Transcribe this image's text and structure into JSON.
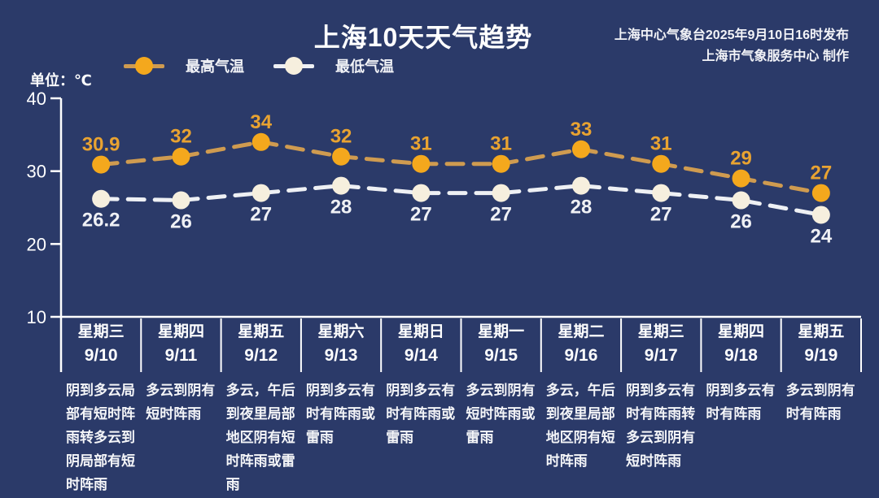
{
  "header": {
    "title": "上海10天天气趋势",
    "publisher_line1": "上海中心气象台2025年9月10日16时发布",
    "publisher_line2": "上海市气象服务中心 制作"
  },
  "legend": {
    "high_label": "最高气温",
    "low_label": "最低气温"
  },
  "unit_label": "单位：℃",
  "colors": {
    "background": "#2b3a69",
    "axis": "#ffffff",
    "high_line": "#cf9b50",
    "high_marker": "#f4a81d",
    "high_value_label": "#e9a331",
    "low_line": "#eef0f4",
    "low_marker": "#f6efde",
    "low_value_label": "#f0f1f5"
  },
  "chart_data": {
    "type": "line",
    "title": "上海10天天气趋势",
    "unit": "℃",
    "ylim": [
      10,
      40
    ],
    "yticks": [
      40,
      30,
      20,
      10
    ],
    "grid": false,
    "legend_position": "top-left",
    "categories": [
      "9/10",
      "9/11",
      "9/12",
      "9/13",
      "9/14",
      "9/15",
      "9/16",
      "9/17",
      "9/18",
      "9/19"
    ],
    "series": [
      {
        "name": "最高气温",
        "values": [
          30.9,
          32,
          34,
          32,
          31,
          31,
          33,
          31,
          29,
          27
        ]
      },
      {
        "name": "最低气温",
        "values": [
          26.2,
          26,
          27,
          28,
          27,
          27,
          28,
          27,
          26,
          24
        ]
      }
    ]
  },
  "days": [
    {
      "weekday": "星期三",
      "date": "9/10",
      "high": "30.9",
      "low": "26.2",
      "weather": "阴到多云局部有短时阵雨转多云到阴局部有短时阵雨"
    },
    {
      "weekday": "星期四",
      "date": "9/11",
      "high": "32",
      "low": "26",
      "weather": "多云到阴有短时阵雨"
    },
    {
      "weekday": "星期五",
      "date": "9/12",
      "high": "34",
      "low": "27",
      "weather": "多云，午后到夜里局部地区阴有短时阵雨或雷雨"
    },
    {
      "weekday": "星期六",
      "date": "9/13",
      "high": "32",
      "low": "28",
      "weather": "阴到多云有时有阵雨或雷雨"
    },
    {
      "weekday": "星期日",
      "date": "9/14",
      "high": "31",
      "low": "27",
      "weather": "阴到多云有时有阵雨或雷雨"
    },
    {
      "weekday": "星期一",
      "date": "9/15",
      "high": "31",
      "low": "27",
      "weather": "多云到阴有短时阵雨或雷雨"
    },
    {
      "weekday": "星期二",
      "date": "9/16",
      "high": "33",
      "low": "28",
      "weather": "多云，午后到夜里局部地区阴有短时阵雨"
    },
    {
      "weekday": "星期三",
      "date": "9/17",
      "high": "31",
      "low": "27",
      "weather": "阴到多云有时有阵雨转多云到阴有短时阵雨"
    },
    {
      "weekday": "星期四",
      "date": "9/18",
      "high": "29",
      "low": "26",
      "weather": "阴到多云有时有阵雨"
    },
    {
      "weekday": "星期五",
      "date": "9/19",
      "high": "27",
      "low": "24",
      "weather": "多云到阴有时有阵雨"
    }
  ]
}
